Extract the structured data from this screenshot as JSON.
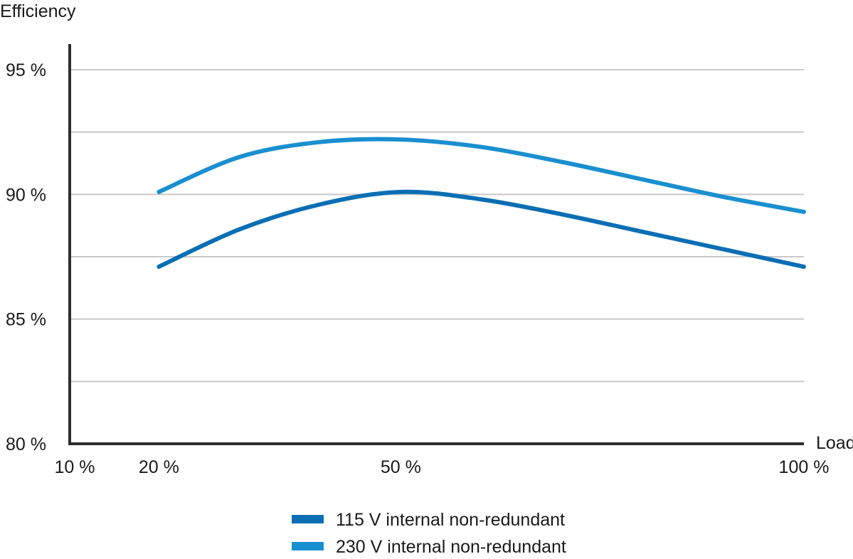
{
  "chart_data": {
    "type": "line",
    "title": "",
    "xlabel": "Load",
    "ylabel": "Efficiency",
    "x_ticks": [
      {
        "value": 10,
        "label": "10 %"
      },
      {
        "value": 20,
        "label": "20 %"
      },
      {
        "value": 50,
        "label": "50 %"
      },
      {
        "value": 100,
        "label": "100 %"
      }
    ],
    "y_ticks": [
      {
        "value": 80,
        "label": "80 %"
      },
      {
        "value": 85,
        "label": "85 %"
      },
      {
        "value": 90,
        "label": "90 %"
      },
      {
        "value": 95,
        "label": "95 %"
      }
    ],
    "gridlines": [
      82.5,
      85,
      87.5,
      90,
      92.5,
      95
    ],
    "xlim": [
      10,
      100
    ],
    "ylim": [
      80,
      96
    ],
    "grid": true,
    "legend_position": "bottom-center",
    "series": [
      {
        "name": "115 V internal non-redundant",
        "color": "#0a6eb4",
        "points": [
          [
            20,
            87.1
          ],
          [
            30,
            88.6
          ],
          [
            40,
            89.6
          ],
          [
            50,
            90.1
          ],
          [
            60,
            89.8
          ],
          [
            70,
            89.2
          ],
          [
            80,
            88.5
          ],
          [
            90,
            87.8
          ],
          [
            100,
            87.1
          ]
        ]
      },
      {
        "name": "230 V internal non-redundant",
        "color": "#1a8fd0",
        "points": [
          [
            20,
            90.1
          ],
          [
            30,
            91.5
          ],
          [
            40,
            92.1
          ],
          [
            50,
            92.2
          ],
          [
            60,
            91.9
          ],
          [
            70,
            91.3
          ],
          [
            80,
            90.6
          ],
          [
            90,
            89.9
          ],
          [
            100,
            89.3
          ]
        ]
      }
    ]
  }
}
